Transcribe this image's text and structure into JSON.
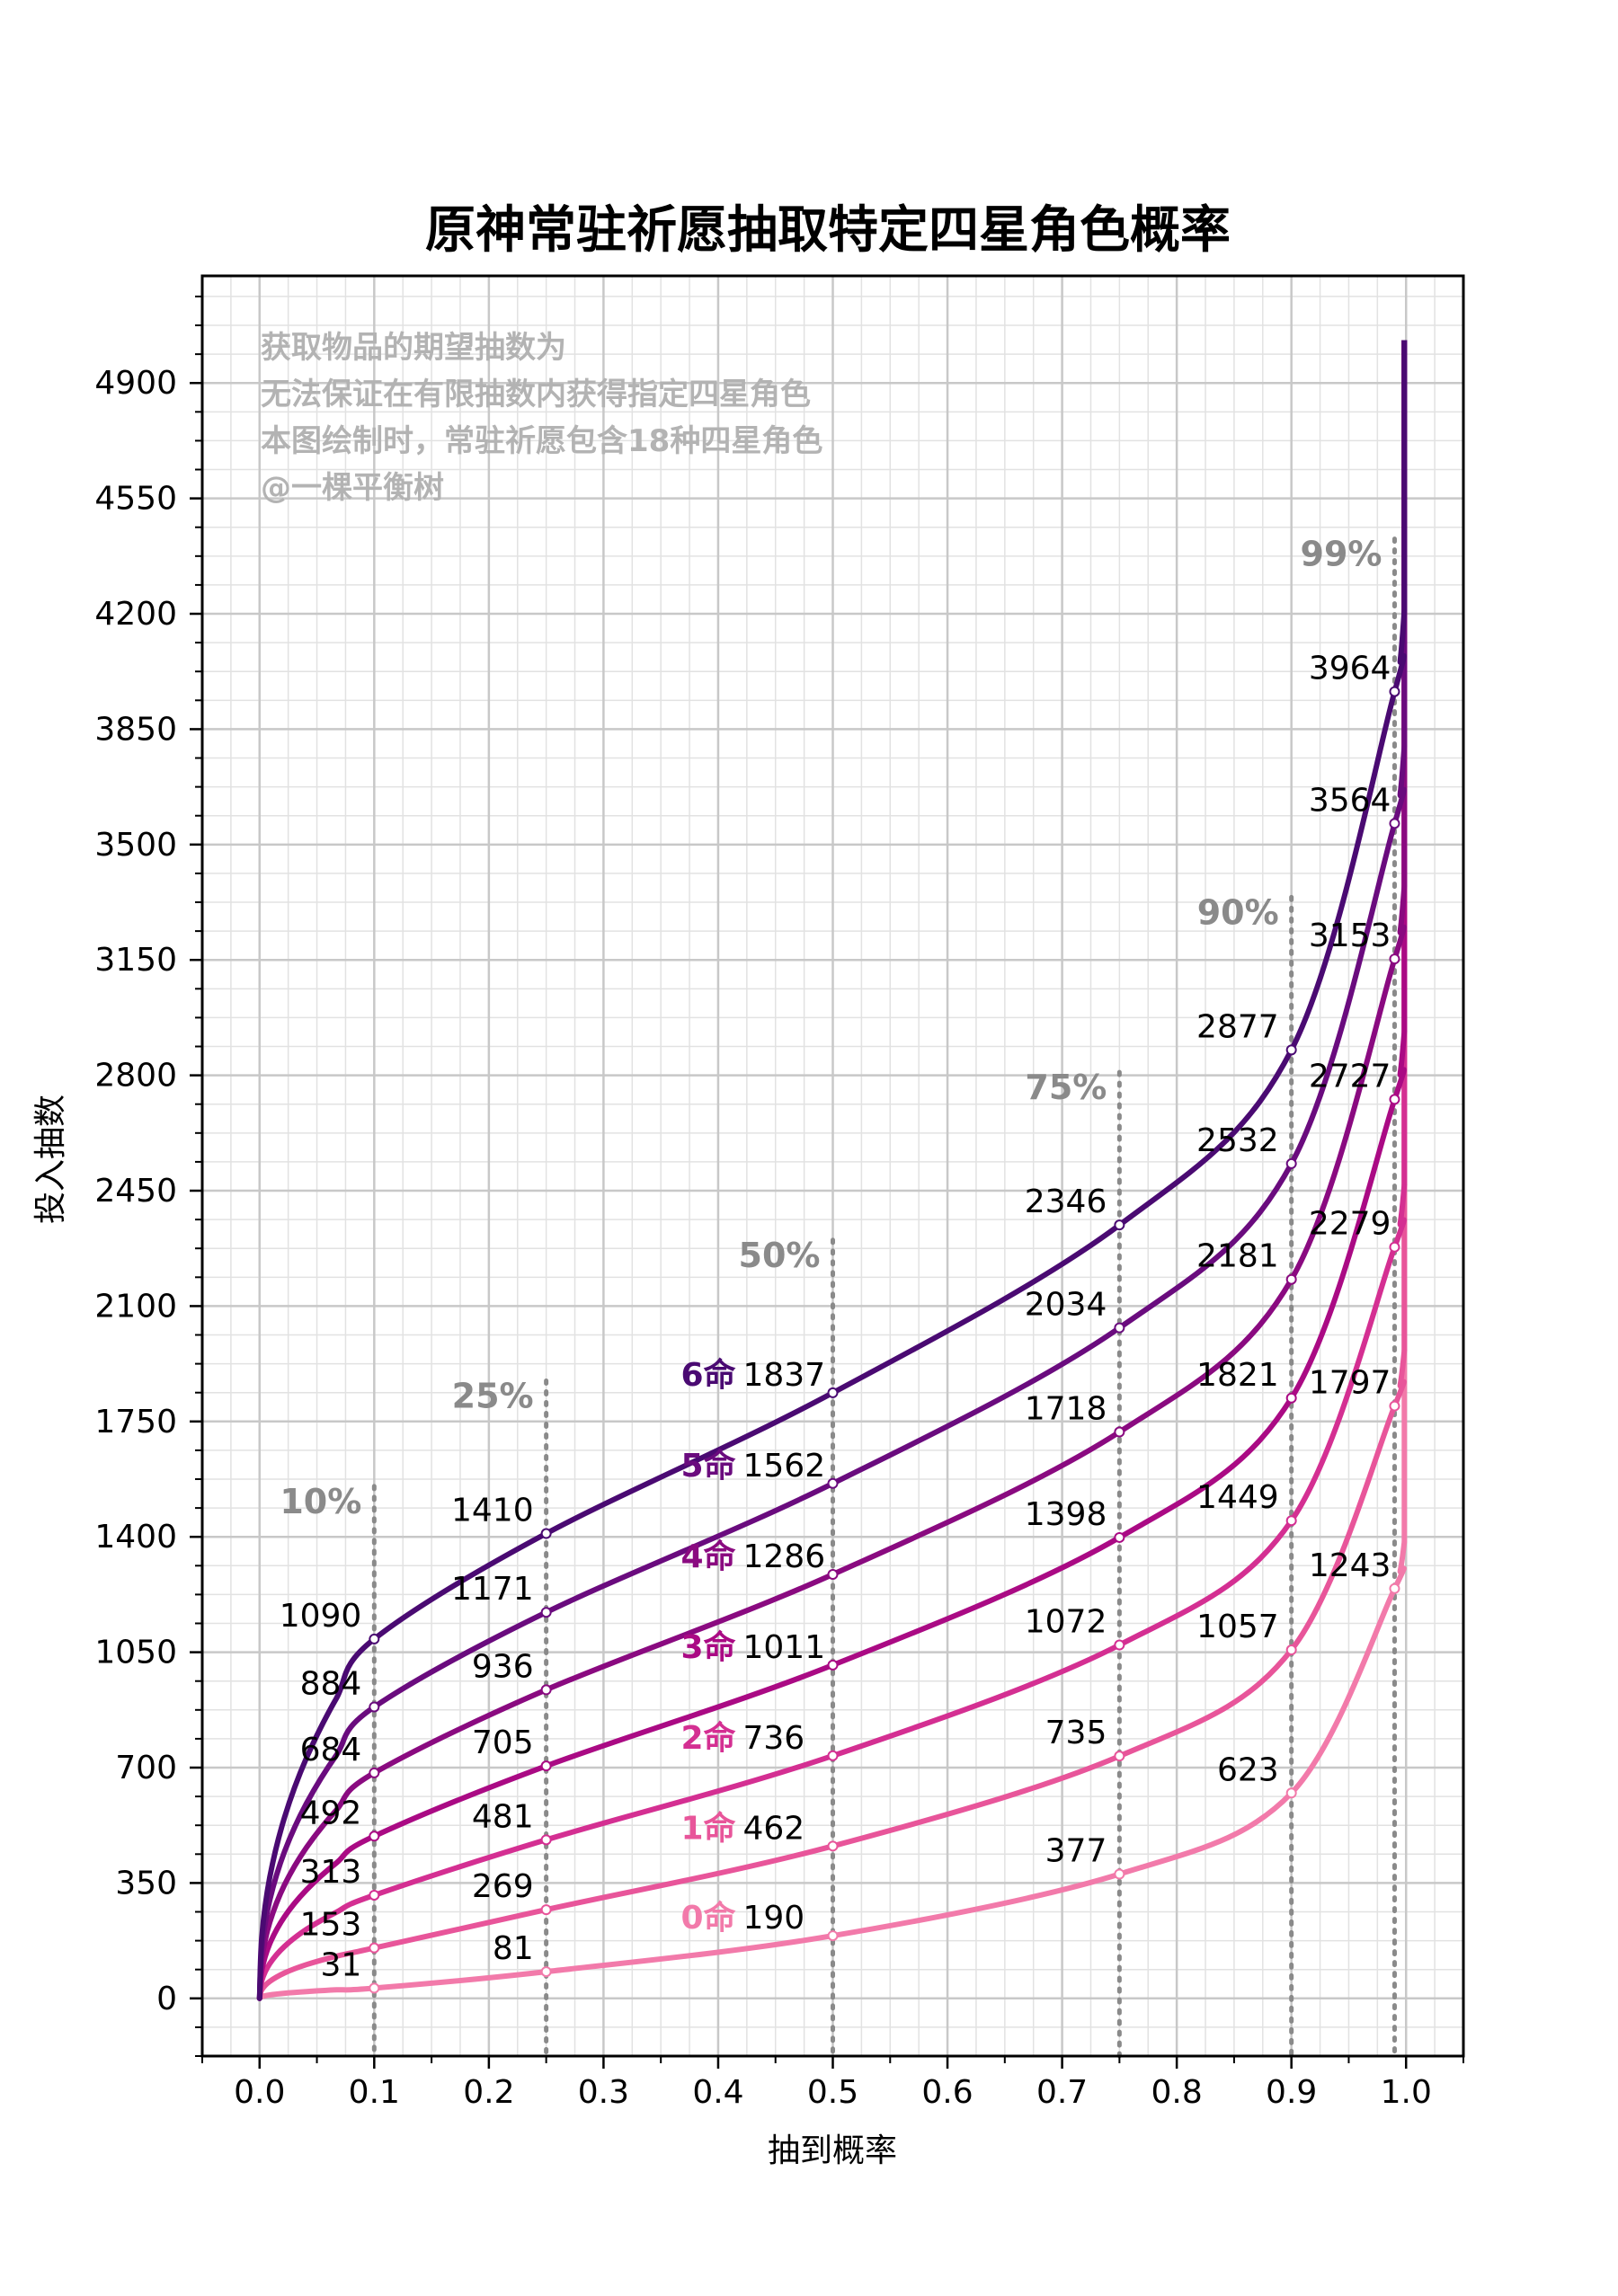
{
  "chart_data": {
    "type": "line",
    "title": "原神常驻祈愿抽取特定四星角色概率",
    "xlabel": "抽到概率",
    "ylabel": "投入抽数",
    "xlim": [
      -0.05,
      1.05
    ],
    "ylim": [
      -175,
      5225
    ],
    "xticks": [
      "0.0",
      "0.1",
      "0.2",
      "0.3",
      "0.4",
      "0.5",
      "0.6",
      "0.7",
      "0.8",
      "0.9",
      "1.0"
    ],
    "yticks": [
      "0",
      "350",
      "700",
      "1050",
      "1400",
      "1750",
      "2100",
      "2450",
      "2800",
      "3150",
      "3500",
      "3850",
      "4200",
      "4550",
      "4900"
    ],
    "grid": true,
    "annotation_lines": [
      "获取物品的期望抽数为",
      "无法保证在有限抽数内获得指定四星角色",
      "本图绘制时，常驻祈愿包含18种四星角色",
      "@一棵平衡树"
    ],
    "quantile_markers": [
      {
        "p": 0.1,
        "label": "10%"
      },
      {
        "p": 0.25,
        "label": "25%"
      },
      {
        "p": 0.5,
        "label": "50%"
      },
      {
        "p": 0.75,
        "label": "75%"
      },
      {
        "p": 0.9,
        "label": "90%"
      },
      {
        "p": 0.99,
        "label": "99%"
      }
    ],
    "series": [
      {
        "name": "0命",
        "color": "#f27aaa",
        "values": [
          31,
          81,
          190,
          377,
          623,
          1243
        ]
      },
      {
        "name": "1命",
        "color": "#e8559a",
        "values": [
          153,
          269,
          462,
          735,
          1057,
          1797
        ]
      },
      {
        "name": "2命",
        "color": "#d42f92",
        "values": [
          313,
          481,
          736,
          1072,
          1449,
          2279
        ]
      },
      {
        "name": "3命",
        "color": "#aa0a84",
        "values": [
          492,
          705,
          1011,
          1398,
          1821,
          2727
        ]
      },
      {
        "name": "4命",
        "color": "#8a0a80",
        "values": [
          684,
          936,
          1286,
          1718,
          2181,
          3153
        ]
      },
      {
        "name": "5命",
        "color": "#6a0b7e",
        "values": [
          884,
          1171,
          1562,
          2034,
          2532,
          3564
        ]
      },
      {
        "name": "6命",
        "color": "#4a0a72",
        "values": [
          1090,
          1410,
          1837,
          2346,
          2877,
          3964
        ]
      }
    ]
  }
}
